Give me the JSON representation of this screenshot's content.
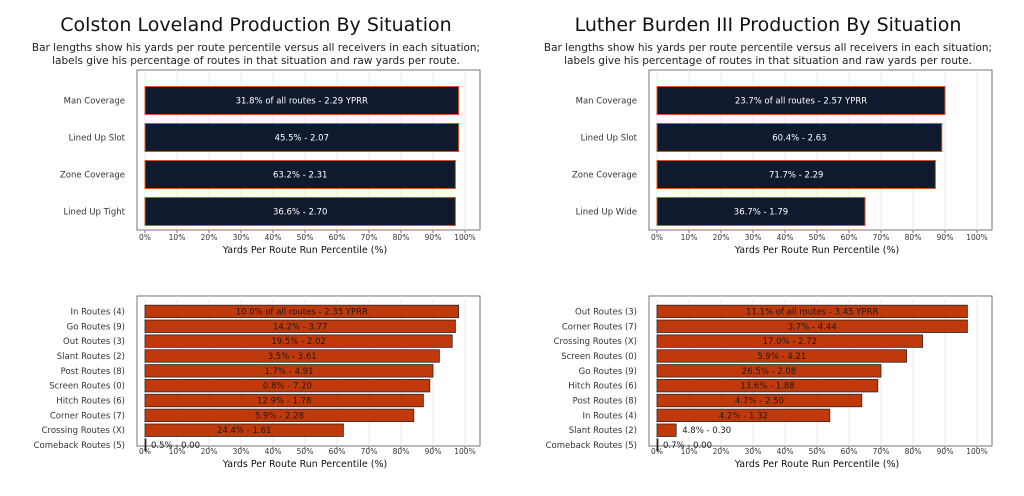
{
  "panels": [
    {
      "player": "Colston Loveland",
      "title": "Colston Loveland Production By Situation",
      "subtitle_lines": [
        "Bar lengths show his yards per route percentile versus all receivers in each situation;",
        "labels give his percentage of routes in that situation and raw yards per route."
      ]
    },
    {
      "player": "Luther Burden III",
      "title": "Luther Burden III Production By Situation",
      "subtitle_lines": [
        "Bar lengths show his yards per route percentile versus all receivers in each situation;",
        "labels give his percentage of routes in that situation and raw yards per route."
      ]
    }
  ],
  "colors": {
    "situation_bar": "#0f1a2e",
    "situation_border": "#d9541e",
    "route_bar": "#c0390b",
    "route_border": "#2a2a2a",
    "panel_border": "#555555",
    "grid": "#e6e6e6"
  },
  "chart_data": [
    {
      "type": "bar",
      "orientation": "horizontal",
      "player": "Colston Loveland",
      "group": "situations",
      "xlabel": "Yards Per Route Run Percentile (%)",
      "xlim": [
        0,
        100
      ],
      "xticks": [
        "0%",
        "10%",
        "20%",
        "30%",
        "40%",
        "50%",
        "60%",
        "70%",
        "80%",
        "90%",
        "100%"
      ],
      "categories": [
        "Man Coverage",
        "Lined Up Slot",
        "Zone Coverage",
        "Lined Up Tight"
      ],
      "values": [
        98,
        98,
        97,
        97
      ],
      "labels": [
        "31.8% of all routes - 2.29 YPRR",
        "45.5% - 2.07",
        "63.2% - 2.31",
        "36.6% - 2.70"
      ]
    },
    {
      "type": "bar",
      "orientation": "horizontal",
      "player": "Luther Burden III",
      "group": "situations",
      "xlabel": "Yards Per Route Run Percentile (%)",
      "xlim": [
        0,
        100
      ],
      "xticks": [
        "0%",
        "10%",
        "20%",
        "30%",
        "40%",
        "50%",
        "60%",
        "70%",
        "80%",
        "90%",
        "100%"
      ],
      "categories": [
        "Man Coverage",
        "Lined Up Slot",
        "Zone Coverage",
        "Lined Up Wide"
      ],
      "values": [
        90,
        89,
        87,
        65
      ],
      "labels": [
        "23.7% of all routes - 2.57 YPRR",
        "60.4% - 2.63",
        "71.7% - 2.29",
        "36.7% - 1.79"
      ]
    },
    {
      "type": "bar",
      "orientation": "horizontal",
      "player": "Colston Loveland",
      "group": "routes",
      "xlabel": "Yards Per Route Run Percentile (%)",
      "xlim": [
        0,
        100
      ],
      "xticks": [
        "0%",
        "10%",
        "20%",
        "30%",
        "40%",
        "50%",
        "60%",
        "70%",
        "80%",
        "90%",
        "100%"
      ],
      "categories": [
        "In Routes (4)",
        "Go Routes (9)",
        "Out Routes (3)",
        "Slant Routes (2)",
        "Post Routes (8)",
        "Screen Routes (0)",
        "Hitch Routes (6)",
        "Corner Routes (7)",
        "Crossing Routes (X)",
        "Comeback Routes (5)"
      ],
      "values": [
        98,
        97,
        96,
        92,
        90,
        89,
        87,
        84,
        62,
        0
      ],
      "labels": [
        "10.0% of all routes - 2.35 YPRR",
        "14.2% - 3.77",
        "19.5% - 2.02",
        "3.5% - 3.61",
        "1.7% - 4.91",
        "0.8% - 7.20",
        "12.9% - 1.78",
        "5.9% - 2.28",
        "24.4% - 1.61",
        "0.5% - 0.00"
      ]
    },
    {
      "type": "bar",
      "orientation": "horizontal",
      "player": "Luther Burden III",
      "group": "routes",
      "xlabel": "Yards Per Route Run Percentile (%)",
      "xlim": [
        0,
        100
      ],
      "xticks": [
        "0%",
        "10%",
        "20%",
        "30%",
        "40%",
        "50%",
        "60%",
        "70%",
        "80%",
        "90%",
        "100%"
      ],
      "categories": [
        "Out Routes (3)",
        "Corner Routes (7)",
        "Crossing Routes (X)",
        "Screen Routes (0)",
        "Go Routes (9)",
        "Hitch Routes (6)",
        "Post Routes (8)",
        "In Routes (4)",
        "Slant Routes (2)",
        "Comeback Routes (5)"
      ],
      "values": [
        97,
        97,
        83,
        78,
        70,
        69,
        64,
        54,
        6,
        0
      ],
      "labels": [
        "11.1% of all routes - 3.45 YPRR",
        "3.7% - 4.44",
        "17.0% - 2.72",
        "5.9% - 4.21",
        "26.5% - 2.08",
        "13.6% - 1.88",
        "4.7% - 2.50",
        "4.2% - 1.32",
        "4.8% - 0.30",
        "0.7% - 0.00"
      ]
    }
  ]
}
